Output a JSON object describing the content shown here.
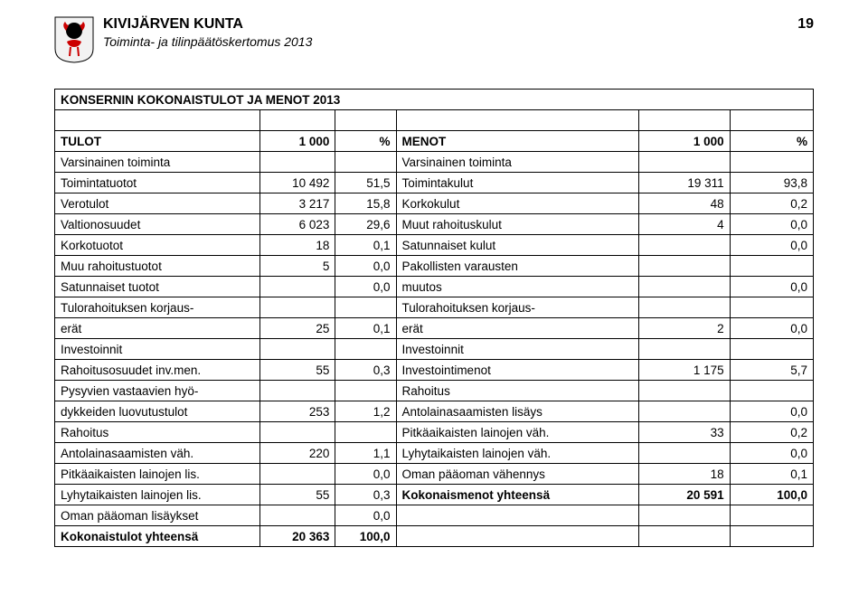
{
  "header": {
    "title": "KIVIJÄRVEN KUNTA",
    "subtitle": "Toiminta- ja tilinpäätöskertomus 2013",
    "page_number": "19"
  },
  "table_title": "KONSERNIN KOKONAISTULOT JA MENOT 2013",
  "head_row": {
    "l1": "TULOT",
    "l2": "1 000",
    "l3": "%",
    "r1": "MENOT",
    "r2": "1 000",
    "r3": "%"
  },
  "rows": [
    {
      "l1": "Varsinainen toiminta",
      "l2": "",
      "l3": "",
      "r1": "Varsinainen toiminta",
      "r2": "",
      "r3": ""
    },
    {
      "l1": "Toimintatuotot",
      "l2": "10 492",
      "l3": "51,5",
      "r1": "Toimintakulut",
      "r2": "19 311",
      "r3": "93,8"
    },
    {
      "l1": "Verotulot",
      "l2": "3 217",
      "l3": "15,8",
      "r1": "Korkokulut",
      "r2": "48",
      "r3": "0,2"
    },
    {
      "l1": "Valtionosuudet",
      "l2": "6 023",
      "l3": "29,6",
      "r1": "Muut rahoituskulut",
      "r2": "4",
      "r3": "0,0"
    },
    {
      "l1": "Korkotuotot",
      "l2": "18",
      "l3": "0,1",
      "r1": "Satunnaiset kulut",
      "r2": "",
      "r3": "0,0"
    },
    {
      "l1": "Muu rahoitustuotot",
      "l2": "5",
      "l3": "0,0",
      "r1": "Pakollisten varausten",
      "r2": "",
      "r3": ""
    },
    {
      "l1": "Satunnaiset tuotot",
      "l2": "",
      "l3": "0,0",
      "r1": "muutos",
      "r2": "",
      "r3": "0,0"
    },
    {
      "l1": "Tulorahoituksen korjaus-",
      "l2": "",
      "l3": "",
      "r1": "Tulorahoituksen korjaus-",
      "r2": "",
      "r3": ""
    },
    {
      "l1": "erät",
      "l2": "25",
      "l3": "0,1",
      "r1": "erät",
      "r2": "2",
      "r3": "0,0"
    },
    {
      "l1": "Investoinnit",
      "l2": "",
      "l3": "",
      "r1": "Investoinnit",
      "r2": "",
      "r3": ""
    },
    {
      "l1": "Rahoitusosuudet inv.men.",
      "l2": "55",
      "l3": "0,3",
      "r1": "Investointimenot",
      "r2": "1 175",
      "r3": "5,7"
    },
    {
      "l1": "Pysyvien vastaavien hyö-",
      "l2": "",
      "l3": "",
      "r1": "Rahoitus",
      "r2": "",
      "r3": ""
    },
    {
      "l1": "dykkeiden luovutustulot",
      "l2": "253",
      "l3": "1,2",
      "r1": "Antolainasaamisten lisäys",
      "r2": "",
      "r3": "0,0"
    },
    {
      "l1": "Rahoitus",
      "l2": "",
      "l3": "",
      "r1": "Pitkäaikaisten lainojen väh.",
      "r2": "33",
      "r3": "0,2"
    },
    {
      "l1": "Antolainasaamisten väh.",
      "l2": "220",
      "l3": "1,1",
      "r1": "Lyhytaikaisten lainojen väh.",
      "r2": "",
      "r3": "0,0"
    },
    {
      "l1": "Pitkäaikaisten lainojen lis.",
      "l2": "",
      "l3": "0,0",
      "r1": "Oman pääoman vähennys",
      "r2": "18",
      "r3": "0,1"
    },
    {
      "l1": "Lyhytaikaisten lainojen lis.",
      "l2": "55",
      "l3": "0,3",
      "r1": "Kokonaismenot yhteensä",
      "r2": "20 591",
      "r3": "100,0",
      "r1_bold": true
    },
    {
      "l1": "Oman pääoman lisäykset",
      "l2": "",
      "l3": "0,0",
      "r1": "",
      "r2": "",
      "r3": ""
    },
    {
      "l1": "Kokonaistulot yhteensä",
      "l2": "20 363",
      "l3": "100,0",
      "r1": "",
      "r2": "",
      "r3": "",
      "l1_bold": true
    }
  ]
}
